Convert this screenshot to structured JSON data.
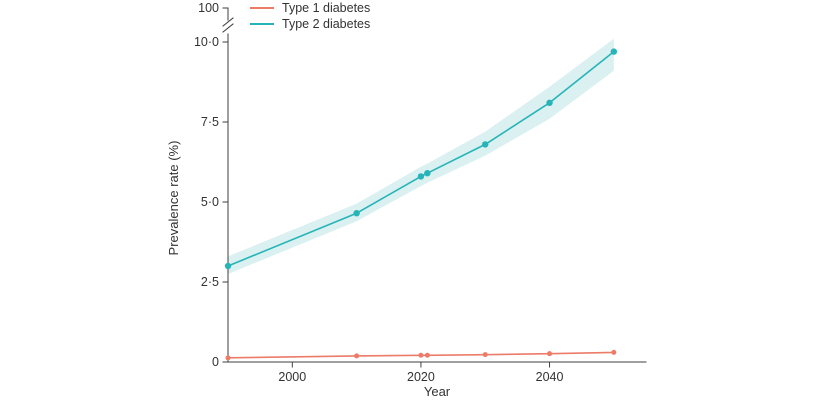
{
  "chart_data": {
    "type": "line",
    "title": "",
    "xlabel": "Year",
    "ylabel": "Prevalence rate (%)",
    "x": [
      1990,
      2010,
      2020,
      2021,
      2030,
      2040,
      2050
    ],
    "series": [
      {
        "name": "Type 1 diabetes",
        "color": "#ec7b68",
        "marker_radius": 2.5,
        "values": [
          0.13,
          0.19,
          0.21,
          0.21,
          0.23,
          0.26,
          0.3
        ]
      },
      {
        "name": "Type 2 diabetes",
        "color": "#27b4b8",
        "marker_radius": 3.2,
        "values": [
          3.0,
          4.65,
          5.8,
          5.9,
          6.8,
          8.1,
          9.7
        ],
        "band_lower": [
          2.75,
          4.4,
          5.5,
          5.6,
          6.45,
          7.6,
          9.1
        ],
        "band_upper": [
          3.3,
          4.95,
          6.1,
          6.2,
          7.2,
          8.6,
          10.1
        ]
      }
    ],
    "band_color": "#daf0f1",
    "x_ticks": [
      2000,
      2020,
      2040
    ],
    "y_ticks": [
      {
        "value": 0,
        "label": "0"
      },
      {
        "value": 2.5,
        "label": "2·5"
      },
      {
        "value": 5,
        "label": "5·0"
      },
      {
        "value": 7.5,
        "label": "7·5"
      },
      {
        "value": 10,
        "label": "10·0"
      }
    ],
    "y_axis_break_label": "100",
    "ylim": [
      0,
      10
    ],
    "xlim": [
      1990,
      2055
    ],
    "grid": false,
    "legend_position": "top-left-inside"
  }
}
